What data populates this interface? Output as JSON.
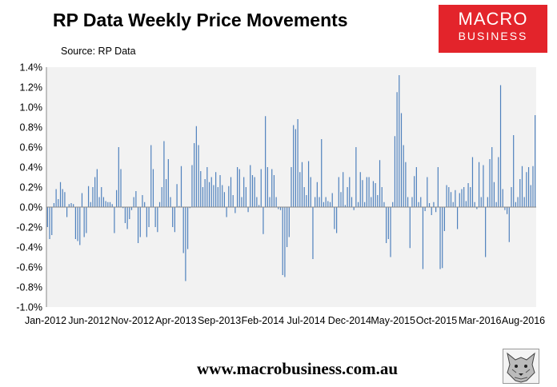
{
  "header": {
    "title": "RP Data Weekly Price Movements",
    "subtitle": "Source: RP Data"
  },
  "logo": {
    "line1": "MACRO",
    "line2": "BUSINESS"
  },
  "footer": {
    "url": "www.macrobusiness.com.au",
    "icon": "wolf-icon"
  },
  "chart_data": {
    "type": "bar",
    "title": "RP Data Weekly Price Movements",
    "source": "Source: RP Data",
    "xlabel": "",
    "ylabel": "",
    "ylim": [
      -0.01,
      0.014
    ],
    "yticks": [
      "1.4%",
      "1.2%",
      "1.0%",
      "0.8%",
      "0.6%",
      "0.4%",
      "0.2%",
      "0.0%",
      "-0.2%",
      "-0.4%",
      "-0.6%",
      "-0.8%",
      "-1.0%"
    ],
    "xticks": [
      "Jan-2012",
      "Jun-2012",
      "Nov-2012",
      "Apr-2013",
      "Sep-2013",
      "Feb-2014",
      "Jul-2014",
      "Dec-2014",
      "May-2015",
      "Oct-2015",
      "Mar-2016",
      "Aug-2016"
    ],
    "bar_color": "#4f81bd",
    "values": [
      -0.2,
      -0.32,
      -0.28,
      0.04,
      0.18,
      0.08,
      0.25,
      0.18,
      0.15,
      -0.1,
      0.03,
      0.04,
      0.03,
      -0.32,
      -0.34,
      -0.38,
      0.14,
      -0.3,
      -0.26,
      0.21,
      0.05,
      0.2,
      0.3,
      0.38,
      0.1,
      0.2,
      0.1,
      0.06,
      0.05,
      0.05,
      0.03,
      -0.26,
      0.17,
      0.6,
      0.38,
      -0.01,
      -0.16,
      -0.22,
      -0.12,
      -0.03,
      0.1,
      0.16,
      -0.36,
      -0.3,
      0.12,
      0.05,
      -0.3,
      -0.2,
      0.62,
      0.38,
      -0.2,
      -0.25,
      0.05,
      0.2,
      0.66,
      0.28,
      0.48,
      0.1,
      -0.2,
      -0.25,
      0.23,
      0.01,
      0.41,
      -0.46,
      -0.74,
      -0.42,
      -0.01,
      0.42,
      0.64,
      0.81,
      0.62,
      0.36,
      0.2,
      0.28,
      0.4,
      0.25,
      0.3,
      0.22,
      0.35,
      0.2,
      0.32,
      0.22,
      0.15,
      -0.1,
      0.21,
      0.3,
      0.12,
      -0.06,
      0.4,
      0.38,
      0.1,
      0.3,
      0.2,
      -0.05,
      0.42,
      0.32,
      0.3,
      0.1,
      0.02,
      0.38,
      -0.27,
      0.91,
      0.4,
      0.1,
      0.38,
      0.32,
      0.1,
      -0.02,
      -0.03,
      -0.68,
      -0.7,
      -0.4,
      -0.3,
      0.4,
      0.82,
      0.78,
      0.88,
      0.35,
      0.45,
      0.2,
      0.12,
      0.46,
      0.3,
      -0.52,
      0.1,
      0.25,
      0.1,
      0.68,
      0.05,
      0.1,
      0.06,
      0.05,
      0.14,
      -0.22,
      -0.26,
      0.3,
      0.15,
      0.35,
      0.02,
      0.2,
      0.3,
      0.1,
      -0.03,
      0.6,
      0.05,
      0.35,
      0.27,
      0.05,
      0.3,
      0.3,
      0.1,
      0.26,
      0.24,
      0.12,
      0.47,
      0.2,
      0.05,
      -0.36,
      -0.32,
      -0.5,
      0.05,
      0.71,
      1.15,
      1.32,
      0.94,
      0.62,
      0.45,
      0.1,
      -0.41,
      0.1,
      0.31,
      0.4,
      0.05,
      0.1,
      -0.62,
      -0.04,
      0.3,
      0.04,
      -0.08,
      0.05,
      -0.05,
      0.4,
      -0.62,
      -0.61,
      -0.24,
      0.22,
      0.2,
      0.15,
      0.05,
      0.17,
      -0.22,
      0.14,
      0.18,
      0.2,
      0.06,
      0.24,
      0.2,
      0.5,
      0.05,
      -0.02,
      0.45,
      0.1,
      0.42,
      -0.5,
      0.1,
      0.48,
      0.6,
      0.25,
      0.05,
      0.5,
      1.22,
      0.18,
      -0.03,
      -0.07,
      -0.35,
      0.2,
      0.72,
      0.05,
      0.1,
      0.28,
      0.41,
      0.1,
      0.35,
      0.4,
      0.22,
      0.41,
      0.92
    ]
  }
}
